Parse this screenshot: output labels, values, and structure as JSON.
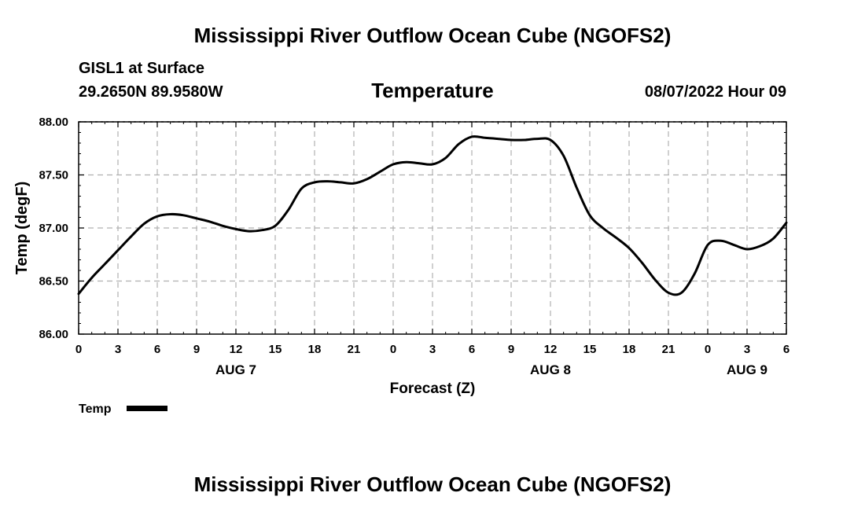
{
  "title": "Mississippi River Outflow Ocean Cube (NGOFS2)",
  "footer_title": "Mississippi River Outflow Ocean Cube (NGOFS2)",
  "station": {
    "name": "GISL1 at Surface",
    "coords": "29.2650N  89.9580W"
  },
  "timestamp": "08/07/2022 Hour 09",
  "legend": {
    "label": "Temp",
    "color": "#000000"
  },
  "chart_data": {
    "type": "line",
    "title": "Temperature",
    "xlabel": "Forecast (Z)",
    "ylabel": "Temp (degF)",
    "xlim": [
      0,
      54
    ],
    "ylim": [
      86.0,
      88.0
    ],
    "grid": true,
    "x_ticks": [
      0,
      3,
      6,
      9,
      12,
      15,
      18,
      21,
      24,
      27,
      30,
      33,
      36,
      39,
      42,
      45,
      48,
      51,
      54
    ],
    "x_tick_labels": [
      "0",
      "3",
      "6",
      "9",
      "12",
      "15",
      "18",
      "21",
      "0",
      "3",
      "6",
      "9",
      "12",
      "15",
      "18",
      "21",
      "0",
      "3",
      "6"
    ],
    "y_ticks": [
      86.0,
      86.5,
      87.0,
      87.5,
      88.0
    ],
    "y_tick_labels": [
      "86.00",
      "86.50",
      "87.00",
      "87.50",
      "88.00"
    ],
    "day_labels": [
      {
        "x": 12,
        "label": "AUG 7"
      },
      {
        "x": 36,
        "label": "AUG 8"
      },
      {
        "x": 51,
        "label": "AUG 9"
      }
    ],
    "series": [
      {
        "name": "Temp",
        "x": [
          0,
          1,
          2,
          3,
          4,
          5,
          6,
          7,
          8,
          9,
          10,
          11,
          12,
          13,
          14,
          15,
          16,
          17,
          18,
          19,
          20,
          21,
          22,
          23,
          24,
          25,
          26,
          27,
          28,
          29,
          30,
          31,
          32,
          33,
          34,
          35,
          36,
          37,
          38,
          39,
          40,
          41,
          42,
          43,
          44,
          45,
          46,
          47,
          48,
          49,
          50,
          51,
          52,
          53,
          54
        ],
        "values": [
          86.38,
          86.53,
          86.66,
          86.79,
          86.92,
          87.04,
          87.11,
          87.13,
          87.12,
          87.09,
          87.06,
          87.02,
          86.99,
          86.97,
          86.98,
          87.02,
          87.17,
          87.37,
          87.43,
          87.44,
          87.43,
          87.42,
          87.46,
          87.53,
          87.6,
          87.62,
          87.61,
          87.6,
          87.66,
          87.79,
          87.86,
          87.85,
          87.84,
          87.83,
          87.83,
          87.84,
          87.83,
          87.68,
          87.38,
          87.12,
          87.0,
          86.91,
          86.81,
          86.67,
          86.51,
          86.39,
          86.39,
          86.57,
          86.84,
          86.88,
          86.84,
          86.8,
          86.83,
          86.9,
          87.05
        ]
      }
    ]
  }
}
